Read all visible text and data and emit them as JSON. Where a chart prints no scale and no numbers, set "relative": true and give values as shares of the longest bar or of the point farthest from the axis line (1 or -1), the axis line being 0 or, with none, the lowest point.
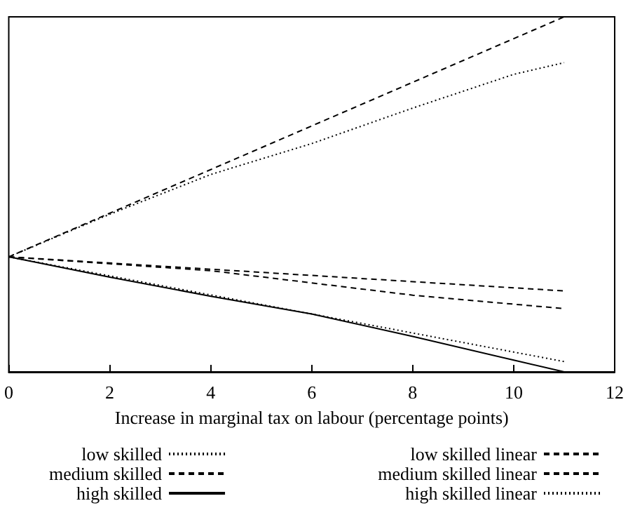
{
  "chart_data": {
    "type": "line",
    "xlabel": "Increase in marginal tax on labour (percentage points)",
    "xlim": [
      0,
      12
    ],
    "xticks": [
      0,
      2,
      4,
      6,
      8,
      10,
      12
    ],
    "relative": true,
    "tick_labels": "x",
    "grid": false,
    "legend": "bottom",
    "marker": "none",
    "series": [
      {
        "name": "low skilled",
        "color": "#000000",
        "line_style": "dotted",
        "x": [
          0,
          2,
          4,
          6,
          8,
          10,
          11
        ],
        "values": [
          0.324,
          0.444,
          0.556,
          0.643,
          0.743,
          0.838,
          0.871
        ]
      },
      {
        "name": "medium skilled",
        "color": "#000000",
        "line_style": "dashed",
        "x": [
          0,
          4,
          8,
          11
        ],
        "values": [
          0.324,
          0.285,
          0.216,
          0.178
        ]
      },
      {
        "name": "high skilled",
        "color": "#000000",
        "line_style": "solid",
        "x": [
          0,
          2,
          4,
          6,
          8,
          10,
          11
        ],
        "values": [
          0.324,
          0.267,
          0.213,
          0.163,
          0.1,
          0.033,
          0
        ]
      },
      {
        "name": "low skilled linear",
        "color": "#000000",
        "line_style": "dashed",
        "x": [
          0,
          11
        ],
        "values": [
          0.324,
          1
        ]
      },
      {
        "name": "medium skilled linear",
        "color": "#000000",
        "line_style": "dashed",
        "x": [
          0,
          11
        ],
        "values": [
          0.324,
          0.228
        ]
      },
      {
        "name": "high skilled linear",
        "color": "#000000",
        "line_style": "dotted",
        "x": [
          0,
          11
        ],
        "values": [
          0.324,
          0.029
        ]
      }
    ]
  }
}
